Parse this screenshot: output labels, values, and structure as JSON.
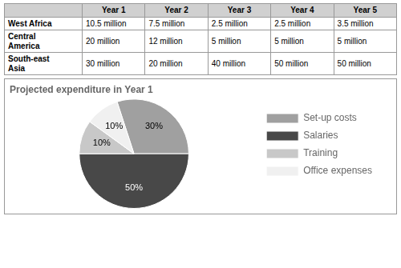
{
  "chart_data": {
    "type": "pie",
    "title": "Projected expenditure in Year 1",
    "categories": [
      "Set-up costs",
      "Salaries",
      "Training",
      "Office expenses"
    ],
    "values": [
      30,
      50,
      10,
      10
    ],
    "value_labels": [
      "30%",
      "50%",
      "10%",
      "10%"
    ],
    "colors": [
      "#a0a0a0",
      "#484848",
      "#c8c8c8",
      "#f0f0f0"
    ],
    "data_labels": true,
    "legend": "right"
  },
  "table": {
    "columns": [
      null,
      "Year 1",
      "Year 2",
      "Year 3",
      "Year 4",
      "Year 5"
    ],
    "rows": [
      [
        "West Africa",
        "10.5 million",
        "7.5 million",
        "2.5 million",
        "2.5 million",
        "3.5 million"
      ],
      [
        "Central\nAmerica",
        "20 million",
        "12 million",
        "5 million",
        "5 million",
        "5 million"
      ],
      [
        "South-east\nAsia",
        "30 million",
        "20 million",
        "40 million",
        "50 million",
        "50 million"
      ]
    ]
  }
}
